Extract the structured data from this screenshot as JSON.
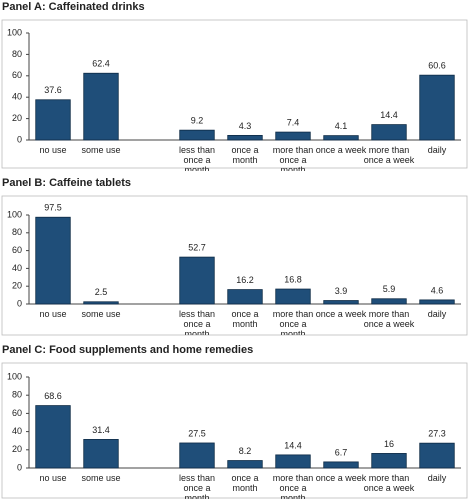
{
  "chart_data": [
    {
      "type": "bar",
      "title": "Panel A: Caffeinated drinks",
      "categories": [
        "no use",
        "some use",
        null,
        "less than once a month",
        "once a month",
        "more than once a month",
        "once a week",
        "more than once a week",
        "daily"
      ],
      "values": [
        37.6,
        62.4,
        null,
        9.2,
        4.3,
        7.4,
        4.1,
        14.4,
        60.6
      ],
      "color": "#1f4e79",
      "ylim": [
        0,
        100
      ],
      "yticks": [
        0,
        20,
        40,
        60,
        80,
        100
      ]
    },
    {
      "type": "bar",
      "title": "Panel B: Caffeine tablets",
      "categories": [
        "no use",
        "some use",
        null,
        "less than once a month",
        "once a month",
        "more than once a month",
        "once a week",
        "more than once a week",
        "daily"
      ],
      "values": [
        97.5,
        2.5,
        null,
        52.7,
        16.2,
        16.8,
        3.9,
        5.9,
        4.6
      ],
      "color": "#1f4e79",
      "ylim": [
        0,
        100
      ],
      "yticks": [
        0,
        20,
        40,
        60,
        80,
        100
      ]
    },
    {
      "type": "bar",
      "title": "Panel C: Food supplements and home remedies",
      "categories": [
        "no use",
        "some use",
        null,
        "less than once a month",
        "once a month",
        "more than once a month",
        "once a week",
        "more than once a week",
        "daily"
      ],
      "values": [
        68.6,
        31.4,
        null,
        27.5,
        8.2,
        14.4,
        6.7,
        16.0,
        27.3
      ],
      "color": "#1f4e79",
      "ylim": [
        0,
        100
      ],
      "yticks": [
        0,
        20,
        40,
        60,
        80,
        100
      ]
    }
  ]
}
